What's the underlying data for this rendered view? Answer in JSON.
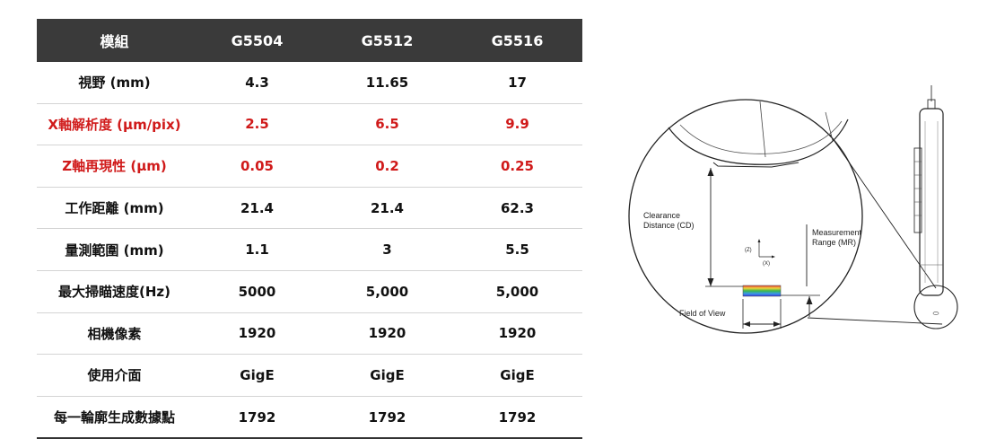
{
  "table": {
    "headers": [
      "模組",
      "G5504",
      "G5512",
      "G5516"
    ],
    "rows": [
      {
        "label": "視野 (mm)",
        "values": [
          "4.3",
          "11.65",
          "17"
        ],
        "highlight": false
      },
      {
        "label": "X軸解析度 (μm/pix)",
        "values": [
          "2.5",
          "6.5",
          "9.9"
        ],
        "highlight": true
      },
      {
        "label": "Z軸再現性 (μm)",
        "values": [
          "0.05",
          "0.2",
          "0.25"
        ],
        "highlight": true
      },
      {
        "label": "工作距離 (mm)",
        "values": [
          "21.4",
          "21.4",
          "62.3"
        ],
        "highlight": false
      },
      {
        "label": "量測範圍 (mm)",
        "values": [
          "1.1",
          "3",
          "5.5"
        ],
        "highlight": false
      },
      {
        "label": "最大掃瞄速度(Hz)",
        "values": [
          "5000",
          "5,000",
          "5,000"
        ],
        "highlight": false
      },
      {
        "label": "相機像素",
        "values": [
          "1920",
          "1920",
          "1920"
        ],
        "highlight": false
      },
      {
        "label": "使用介面",
        "values": [
          "GigE",
          "GigE",
          "GigE"
        ],
        "highlight": false
      },
      {
        "label": "每一輪廓生成數據點",
        "values": [
          "1792",
          "1792",
          "1792"
        ],
        "highlight": false
      }
    ]
  },
  "diagram": {
    "clearance_line1": "Clearance",
    "clearance_line2": "Distance (CD)",
    "measurement_line1": "Measurement",
    "measurement_line2": "Range (MR)",
    "field_of_view": "Field of View",
    "axis_z": "(Z)",
    "axis_x": "(X)"
  },
  "colors": {
    "header_bg": "#3a3a3a",
    "highlight_text": "#d01a1a"
  }
}
